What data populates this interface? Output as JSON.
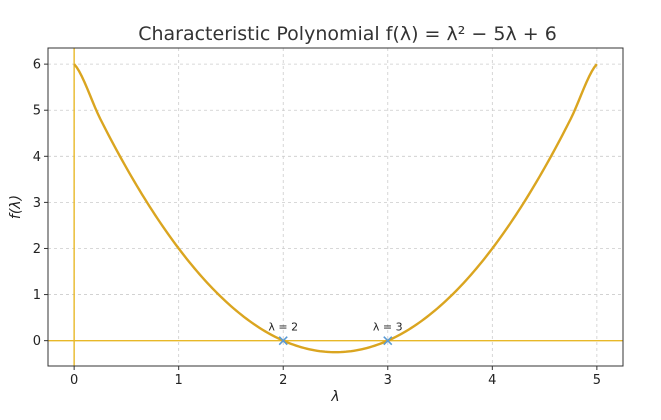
{
  "chart_data": {
    "type": "line",
    "title": "Characteristic Polynomial f(λ) = λ² − 5λ + 6",
    "xlabel": "λ",
    "ylabel": "f(λ)",
    "xlim": [
      -0.25,
      5.25
    ],
    "ylim": [
      -0.55,
      6.35
    ],
    "x_ticks": [
      0,
      1,
      2,
      3,
      4,
      5
    ],
    "y_ticks": [
      0,
      1,
      2,
      3,
      4,
      5,
      6
    ],
    "grid": true,
    "series": [
      {
        "x": [
          0,
          0.25,
          0.5,
          0.75,
          1,
          1.25,
          1.5,
          1.75,
          2,
          2.25,
          2.5,
          2.75,
          3,
          3.25,
          3.5,
          3.75,
          4,
          4.25,
          4.5,
          4.75,
          5
        ],
        "y": [
          6,
          4.8125,
          3.75,
          2.8125,
          2,
          1.3125,
          0.75,
          0.3125,
          0,
          -0.1875,
          -0.25,
          -0.1875,
          0,
          0.3125,
          0.75,
          1.3125,
          2,
          2.8125,
          3.75,
          4.8125,
          6
        ],
        "color": "#DAA520"
      }
    ],
    "reference_lines": [
      {
        "orientation": "horizontal",
        "value": 0,
        "color": "#E8B828"
      },
      {
        "orientation": "vertical",
        "value": 0,
        "color": "#E8B828"
      }
    ],
    "roots": [
      {
        "x": 2,
        "y": 0,
        "label": "λ = 2",
        "color": "#5B9BD5"
      },
      {
        "x": 3,
        "y": 0,
        "label": "λ = 3",
        "color": "#5B9BD5"
      }
    ]
  }
}
